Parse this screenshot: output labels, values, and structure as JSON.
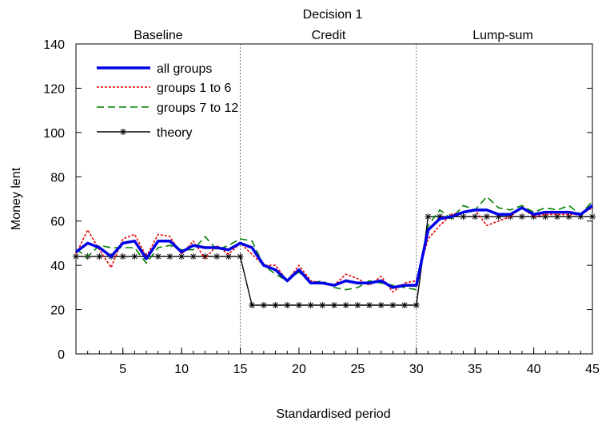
{
  "chart_data": {
    "type": "line",
    "title": "Decision 1",
    "xlabel": "Standardised period",
    "ylabel": "Money lent",
    "xlim": [
      1,
      45
    ],
    "ylim": [
      0,
      140
    ],
    "xticks": [
      5,
      10,
      15,
      20,
      25,
      30,
      35,
      40,
      45
    ],
    "yticks": [
      0,
      20,
      40,
      60,
      80,
      100,
      120,
      140
    ],
    "grid": false,
    "legend_position": "top-left",
    "phases": [
      {
        "label": "Baseline",
        "start": 1,
        "end": 15
      },
      {
        "label": "Credit",
        "start": 15,
        "end": 30
      },
      {
        "label": "Lump-sum",
        "start": 30,
        "end": 45
      }
    ],
    "phase_dividers": [
      15,
      30
    ],
    "x": [
      1,
      2,
      3,
      4,
      5,
      6,
      7,
      8,
      9,
      10,
      11,
      12,
      13,
      14,
      15,
      16,
      17,
      18,
      19,
      20,
      21,
      22,
      23,
      24,
      25,
      26,
      27,
      28,
      29,
      30,
      31,
      32,
      33,
      34,
      35,
      36,
      37,
      38,
      39,
      40,
      41,
      42,
      43,
      44,
      45
    ],
    "series": [
      {
        "name": "all groups",
        "color": "#0000e6",
        "style": "solid-thick",
        "values": [
          46,
          50,
          48,
          44,
          50,
          51,
          43,
          51,
          51,
          46,
          49,
          48,
          48,
          47,
          50,
          48,
          40,
          38,
          33,
          38,
          32,
          32,
          31,
          33,
          32,
          32,
          33,
          30,
          31,
          31,
          56,
          61,
          62,
          64,
          65,
          65,
          63,
          63,
          66,
          63,
          64,
          64,
          64,
          63,
          67
        ]
      },
      {
        "name": "groups 1 to 6",
        "color": "#e60000",
        "style": "dotted",
        "values": [
          45,
          56,
          47,
          39,
          52,
          54,
          44,
          54,
          53,
          45,
          51,
          43,
          49,
          45,
          50,
          45,
          40,
          40,
          33,
          40,
          33,
          32,
          31,
          36,
          34,
          31,
          35,
          28,
          32,
          33,
          52,
          58,
          63,
          64,
          65,
          58,
          60,
          62,
          66,
          62,
          63,
          63,
          63,
          63,
          66
        ]
      },
      {
        "name": "groups 7 to 12",
        "color": "#008000",
        "style": "dashed",
        "values": [
          47,
          44,
          49,
          48,
          48,
          48,
          41,
          48,
          49,
          47,
          47,
          53,
          47,
          49,
          52,
          51,
          40,
          36,
          33,
          37,
          32,
          33,
          30,
          29,
          30,
          33,
          32,
          31,
          30,
          29,
          58,
          65,
          61,
          67,
          65,
          71,
          66,
          65,
          67,
          64,
          66,
          65,
          67,
          63,
          69
        ]
      },
      {
        "name": "theory",
        "color": "#000000",
        "style": "solid-star",
        "values": [
          44,
          44,
          44,
          44,
          44,
          44,
          44,
          44,
          44,
          44,
          44,
          44,
          44,
          44,
          44,
          22,
          22,
          22,
          22,
          22,
          22,
          22,
          22,
          22,
          22,
          22,
          22,
          22,
          22,
          22,
          62,
          62,
          62,
          62,
          62,
          62,
          62,
          62,
          62,
          62,
          62,
          62,
          62,
          62,
          62
        ]
      }
    ]
  }
}
